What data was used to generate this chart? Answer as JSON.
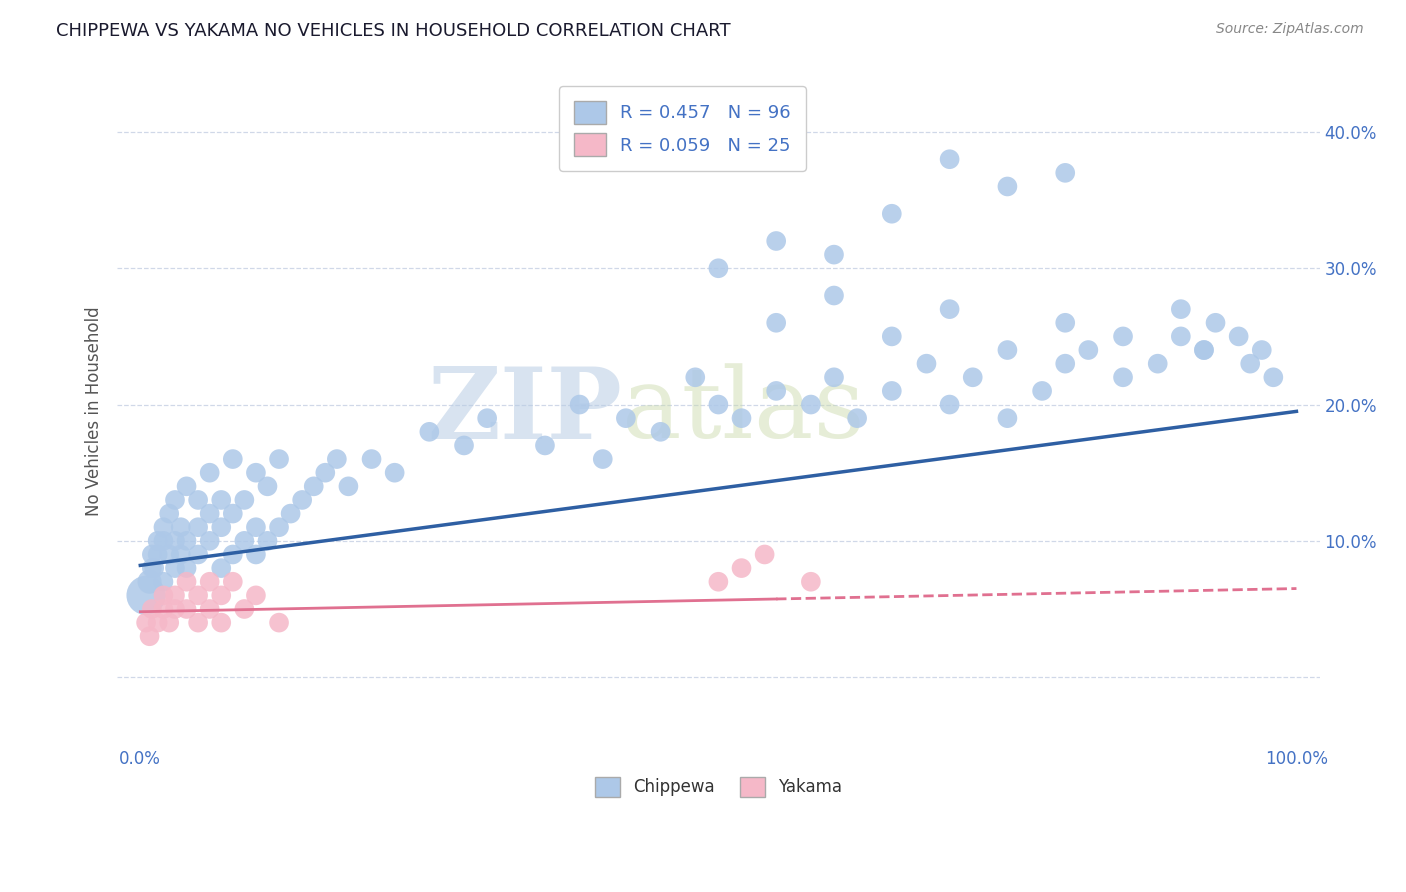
{
  "title": "CHIPPEWA VS YAKAMA NO VEHICLES IN HOUSEHOLD CORRELATION CHART",
  "source_text": "Source: ZipAtlas.com",
  "ylabel": "No Vehicles in Household",
  "xlim": [
    -0.02,
    1.02
  ],
  "ylim": [
    -0.05,
    0.44
  ],
  "xticks": [
    0.0,
    0.1,
    0.2,
    0.3,
    0.4,
    0.5,
    0.6,
    0.7,
    0.8,
    0.9,
    1.0
  ],
  "yticks": [
    0.0,
    0.1,
    0.2,
    0.3,
    0.4
  ],
  "chippewa_color": "#adc8e8",
  "yakama_color": "#f5b8c8",
  "chippewa_line_color": "#2e5fa3",
  "yakama_line_color": "#e07090",
  "R_chippewa": 0.457,
  "N_chippewa": 96,
  "R_yakama": 0.059,
  "N_yakama": 25,
  "background_color": "#ffffff",
  "grid_color": "#d0d8e8",
  "watermark_zip": "ZIP",
  "watermark_atlas": "atlas",
  "title_color": "#1a1a2e",
  "source_color": "#888888",
  "label_color": "#4472c4",
  "chippewa_x": [
    0.005,
    0.008,
    0.01,
    0.01,
    0.012,
    0.015,
    0.015,
    0.02,
    0.02,
    0.02,
    0.025,
    0.025,
    0.03,
    0.03,
    0.03,
    0.035,
    0.035,
    0.04,
    0.04,
    0.04,
    0.05,
    0.05,
    0.05,
    0.06,
    0.06,
    0.06,
    0.07,
    0.07,
    0.07,
    0.08,
    0.08,
    0.08,
    0.09,
    0.09,
    0.1,
    0.1,
    0.1,
    0.11,
    0.11,
    0.12,
    0.12,
    0.13,
    0.14,
    0.15,
    0.16,
    0.17,
    0.18,
    0.2,
    0.22,
    0.25,
    0.28,
    0.3,
    0.35,
    0.38,
    0.4,
    0.42,
    0.45,
    0.48,
    0.5,
    0.52,
    0.55,
    0.58,
    0.6,
    0.62,
    0.65,
    0.68,
    0.7,
    0.72,
    0.75,
    0.78,
    0.8,
    0.82,
    0.85,
    0.88,
    0.9,
    0.92,
    0.93,
    0.95,
    0.96,
    0.97,
    0.98,
    0.55,
    0.6,
    0.65,
    0.7,
    0.75,
    0.8,
    0.85,
    0.9,
    0.92,
    0.5,
    0.55,
    0.6,
    0.65,
    0.7,
    0.75,
    0.8
  ],
  "chippewa_y": [
    0.06,
    0.07,
    0.08,
    0.09,
    0.08,
    0.09,
    0.1,
    0.1,
    0.11,
    0.07,
    0.09,
    0.12,
    0.08,
    0.1,
    0.13,
    0.09,
    0.11,
    0.08,
    0.1,
    0.14,
    0.09,
    0.11,
    0.13,
    0.1,
    0.12,
    0.15,
    0.08,
    0.11,
    0.13,
    0.09,
    0.12,
    0.16,
    0.1,
    0.13,
    0.09,
    0.11,
    0.15,
    0.1,
    0.14,
    0.11,
    0.16,
    0.12,
    0.13,
    0.14,
    0.15,
    0.16,
    0.14,
    0.16,
    0.15,
    0.18,
    0.17,
    0.19,
    0.17,
    0.2,
    0.16,
    0.19,
    0.18,
    0.22,
    0.2,
    0.19,
    0.21,
    0.2,
    0.22,
    0.19,
    0.21,
    0.23,
    0.2,
    0.22,
    0.19,
    0.21,
    0.23,
    0.24,
    0.22,
    0.23,
    0.25,
    0.24,
    0.26,
    0.25,
    0.23,
    0.24,
    0.22,
    0.26,
    0.28,
    0.25,
    0.27,
    0.24,
    0.26,
    0.25,
    0.27,
    0.24,
    0.3,
    0.32,
    0.31,
    0.34,
    0.38,
    0.36,
    0.37
  ],
  "chippewa_sizes": [
    800,
    300,
    200,
    200,
    200,
    200,
    200,
    200,
    200,
    200,
    200,
    200,
    200,
    200,
    200,
    200,
    200,
    200,
    200,
    200,
    200,
    200,
    200,
    200,
    200,
    200,
    200,
    200,
    200,
    200,
    200,
    200,
    200,
    200,
    200,
    200,
    200,
    200,
    200,
    200,
    200,
    200,
    200,
    200,
    200,
    200,
    200,
    200,
    200,
    200,
    200,
    200,
    200,
    200,
    200,
    200,
    200,
    200,
    200,
    200,
    200,
    200,
    200,
    200,
    200,
    200,
    200,
    200,
    200,
    200,
    200,
    200,
    200,
    200,
    200,
    200,
    200,
    200,
    200,
    200,
    200,
    200,
    200,
    200,
    200,
    200,
    200,
    200,
    200,
    200,
    200,
    200,
    200,
    200,
    200,
    200,
    200
  ],
  "yakama_x": [
    0.005,
    0.008,
    0.01,
    0.015,
    0.02,
    0.02,
    0.025,
    0.03,
    0.03,
    0.04,
    0.04,
    0.05,
    0.05,
    0.06,
    0.06,
    0.07,
    0.07,
    0.08,
    0.09,
    0.1,
    0.12,
    0.5,
    0.52,
    0.54,
    0.58
  ],
  "yakama_y": [
    0.04,
    0.03,
    0.05,
    0.04,
    0.05,
    0.06,
    0.04,
    0.06,
    0.05,
    0.05,
    0.07,
    0.06,
    0.04,
    0.07,
    0.05,
    0.06,
    0.04,
    0.07,
    0.05,
    0.06,
    0.04,
    0.07,
    0.08,
    0.09,
    0.07
  ],
  "yakama_sizes": [
    200,
    200,
    200,
    200,
    200,
    200,
    200,
    200,
    200,
    200,
    200,
    200,
    200,
    200,
    200,
    200,
    200,
    200,
    200,
    200,
    200,
    200,
    200,
    200,
    200
  ]
}
